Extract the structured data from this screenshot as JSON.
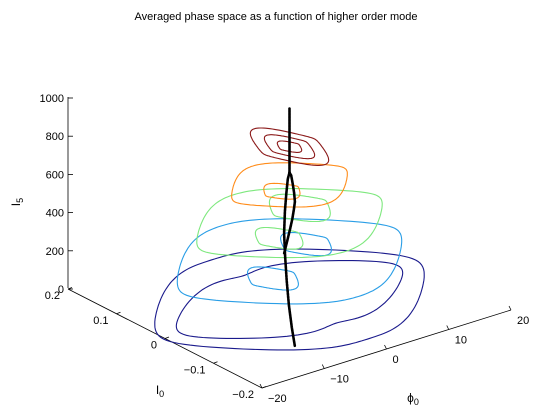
{
  "chart_data": {
    "type": "line",
    "title": "Averaged phase space as a function of higher order mode",
    "axes": {
      "z": {
        "label": "I",
        "label_subscript": "5",
        "range": [
          0,
          1000
        ],
        "ticks": [
          "0",
          "200",
          "400",
          "600",
          "800",
          "1000"
        ]
      },
      "y": {
        "label": "I",
        "label_subscript": "0",
        "range": [
          -0.2,
          0.2
        ],
        "ticks": [
          "−0.2",
          "−0.1",
          "0",
          "0.1",
          "0.2"
        ]
      },
      "x": {
        "label": "ϕ",
        "label_subscript": "0",
        "range": [
          -20,
          20
        ],
        "ticks": [
          "−20",
          "−10",
          "0",
          "10",
          "20"
        ]
      }
    },
    "grid": false,
    "contour_levels": [
      {
        "z": 0,
        "color": "#1a1a8c"
      },
      {
        "z": 200,
        "color": "#2a9ee6"
      },
      {
        "z": 400,
        "color": "#7ee87e"
      },
      {
        "z": 600,
        "color": "#ff8c1a"
      },
      {
        "z": 800,
        "color": "#8b1a1a"
      }
    ],
    "bifurcation_curve_color": "#000000",
    "bifurcation_curve": {
      "left_branch": [
        [
          -8.5,
          -0.12,
          0
        ],
        [
          -8.2,
          -0.11,
          80
        ],
        [
          -7.5,
          -0.095,
          170
        ],
        [
          -6.3,
          -0.075,
          260
        ],
        [
          -5,
          -0.055,
          350
        ],
        [
          -3.6,
          -0.035,
          430
        ],
        [
          -2.3,
          -0.02,
          510
        ],
        [
          -1.3,
          -0.01,
          580
        ],
        [
          -0.5,
          -0.003,
          640
        ],
        [
          0,
          0,
          665
        ]
      ],
      "right_branch": [
        [
          8.5,
          0.12,
          0
        ],
        [
          8.2,
          0.11,
          80
        ],
        [
          7.5,
          0.095,
          170
        ],
        [
          6.3,
          0.075,
          260
        ],
        [
          5,
          0.055,
          350
        ],
        [
          3.6,
          0.035,
          430
        ],
        [
          2.3,
          0.02,
          510
        ],
        [
          1.3,
          0.01,
          580
        ],
        [
          0.5,
          0.003,
          640
        ],
        [
          0,
          0,
          665
        ]
      ],
      "stem": [
        [
          0,
          0,
          665
        ],
        [
          0,
          0,
          1000
        ]
      ]
    }
  }
}
